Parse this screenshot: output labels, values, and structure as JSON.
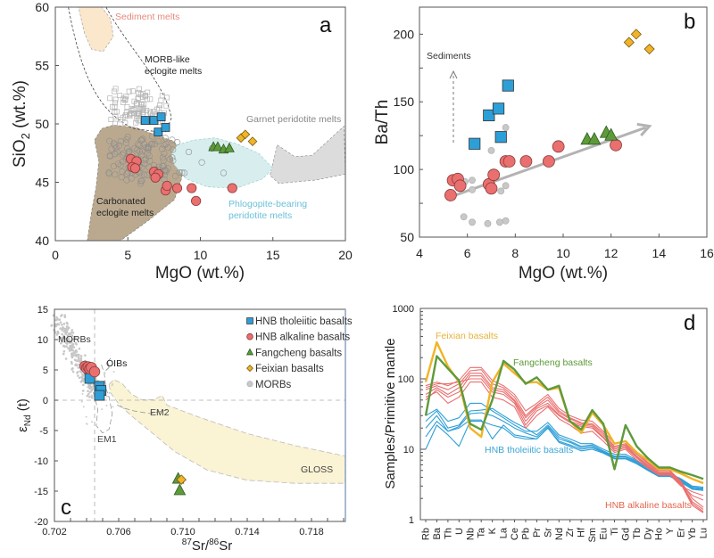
{
  "colors": {
    "hnb_tholeiitic": "#2d9fd8",
    "hnb_alkaline": "#ea6f6f",
    "fangcheng": "#5e9a3c",
    "feixian": "#f0b429",
    "morb": "#c8c8c8",
    "sediment_field": "#fbe7cc",
    "carbonated_field": "#bba98f",
    "phlogopite_field": "#d8eeee",
    "garnet_field": "#dcdcdc",
    "gloss_field": "#faf3d4",
    "alkaline_label": "#e2664e",
    "tholeiitic_label": "#3ba7d6",
    "feixian_label": "#e8b23a",
    "fangcheng_label": "#5a9a35",
    "sediment_label": "#e58a7e",
    "phlogopite_label": "#6cc0d8"
  },
  "chart_data": [
    {
      "id": "a",
      "type": "scatter",
      "panel_label": "a",
      "title": "",
      "xlabel": "MgO (wt.%)",
      "ylabel": "SiO2 (wt.%)",
      "ylabel_main": "SiO",
      "ylabel_sub": "2",
      "ylabel_tail": " (wt.%)",
      "xlim": [
        0,
        20
      ],
      "ylim": [
        40,
        60
      ],
      "xticks": [
        "0",
        "5",
        "10",
        "15",
        "20"
      ],
      "yticks": [
        "40",
        "45",
        "50",
        "55",
        "60"
      ],
      "fields": [
        {
          "name": "Sediment melts",
          "label_pos": [
            4.4,
            58.8
          ]
        },
        {
          "name": "MORB-like eclogite melts",
          "label_lines": [
            "MORB-like",
            "eclogite melts"
          ],
          "label_pos": [
            6.4,
            54.6
          ]
        },
        {
          "name": "Garnet peridotite melts",
          "label_pos": [
            13.6,
            50.4
          ]
        },
        {
          "name": "Carbonated eclogite melts",
          "label_lines": [
            "Carbonated",
            "eclogite melts"
          ],
          "label_pos": [
            3.0,
            43.6
          ]
        },
        {
          "name": "Phlogopite-bearing peridotite melts",
          "label_lines": [
            "Phlogopite-bearing",
            "peridotite melts"
          ],
          "label_pos": [
            12.0,
            43.5
          ]
        }
      ],
      "series": [
        {
          "name": "HNB tholeiitic basalts",
          "marker": "square",
          "x": [
            6.2,
            6.8,
            7.3,
            7.1,
            7.6
          ],
          "y": [
            50.3,
            50.3,
            50.6,
            49.3,
            49.7
          ]
        },
        {
          "name": "HNB alkaline basalts",
          "marker": "circle",
          "x": [
            5.2,
            5.6,
            5.3,
            5.5,
            6.8,
            7.1,
            6.9,
            7.6,
            7.7,
            8.4,
            9.4,
            9.7,
            12.2
          ],
          "y": [
            47.0,
            46.8,
            46.3,
            46.2,
            45.9,
            45.7,
            45.4,
            44.3,
            44.7,
            44.5,
            44.5,
            43.4,
            44.5
          ]
        },
        {
          "name": "Fangcheng basalts",
          "marker": "triangle",
          "x": [
            10.9,
            11.2,
            11.6,
            12.0
          ],
          "y": [
            48.0,
            48.0,
            47.8,
            47.9
          ]
        },
        {
          "name": "Feixian basalts",
          "marker": "diamond",
          "x": [
            12.8,
            13.1,
            13.6
          ],
          "y": [
            48.8,
            49.1,
            48.5
          ]
        }
      ]
    },
    {
      "id": "b",
      "type": "scatter",
      "panel_label": "b",
      "xlabel": "MgO (wt.%)",
      "ylabel": "Ba/Th",
      "xlim": [
        4,
        16
      ],
      "ylim": [
        50,
        220
      ],
      "xticks": [
        "4",
        "6",
        "8",
        "10",
        "12",
        "14",
        "16"
      ],
      "yticks": [
        "50",
        "100",
        "150",
        "200"
      ],
      "annotation": "Sediments",
      "series": [
        {
          "name": "HNB tholeiitic basalts",
          "marker": "square",
          "x": [
            6.3,
            6.9,
            7.3,
            7.7,
            7.4
          ],
          "y": [
            119,
            140,
            145,
            162,
            124
          ]
        },
        {
          "name": "HNB alkaline basalts",
          "marker": "circle",
          "x": [
            5.3,
            5.4,
            5.6,
            5.7,
            6.9,
            7.0,
            7.1,
            7.6,
            7.75,
            8.45,
            9.4,
            9.8,
            12.2
          ],
          "y": [
            81,
            92,
            93,
            88,
            89,
            86,
            96,
            106,
            106,
            106,
            106,
            117,
            118
          ]
        },
        {
          "name": "Fangcheng basalts",
          "marker": "triangle",
          "x": [
            11.0,
            11.3,
            11.8,
            12.0
          ],
          "y": [
            122,
            122,
            127,
            125
          ]
        },
        {
          "name": "Feixian basalts",
          "marker": "diamond",
          "x": [
            12.75,
            13.05,
            13.6
          ],
          "y": [
            194,
            200,
            189
          ]
        },
        {
          "name": "MORBs",
          "marker": "circle-small",
          "x": [
            5.9,
            6.2,
            6.2,
            7.0,
            7.4,
            7.6,
            7.6,
            5.85,
            6.2,
            6.85,
            7.35,
            7.6
          ],
          "y": [
            91,
            92,
            85,
            114,
            84,
            88,
            131,
            65,
            61,
            60,
            61,
            62
          ]
        }
      ],
      "trend_arrow": {
        "from": [
          5.5,
          81
        ],
        "to": [
          13.6,
          132
        ]
      }
    },
    {
      "id": "c",
      "type": "scatter",
      "panel_label": "c",
      "xlabel": "87Sr/86Sr",
      "xlabel_parts": [
        "87",
        "Sr/",
        "86",
        "Sr"
      ],
      "ylabel": "εNd (t)",
      "ylabel_parts": [
        "ε",
        "Nd",
        " (t)"
      ],
      "xlim": [
        0.702,
        0.7201
      ],
      "ylim": [
        -20,
        15
      ],
      "xticks": [
        "0.702",
        "0.706",
        "0.710",
        "0.714",
        "0.718"
      ],
      "yticks": [
        "15",
        "10",
        "5",
        "0",
        "-5",
        "-10",
        "-15",
        "-20"
      ],
      "reference_lines": {
        "x": 0.7045,
        "y": 0
      },
      "field_labels": [
        "MORBs",
        "OIBs",
        "EM1",
        "EM2",
        "GLOSS"
      ],
      "legend": {
        "position": "top-right",
        "entries": [
          {
            "name": "HNB tholeiitic basalts",
            "marker": "square"
          },
          {
            "name": "HNB alkaline basalts",
            "marker": "circle"
          },
          {
            "name": "Fangcheng basalts",
            "marker": "triangle"
          },
          {
            "name": "Feixian basalts",
            "marker": "diamond"
          },
          {
            "name": "MORBs",
            "marker": "circle-small"
          }
        ]
      },
      "series": [
        {
          "name": "HNB tholeiitic basalts",
          "marker": "square",
          "x": [
            0.7042,
            0.7048,
            0.7049,
            0.7048
          ],
          "y": [
            3.6,
            2.3,
            1.6,
            0.8
          ]
        },
        {
          "name": "HNB alkaline basalts",
          "marker": "circle",
          "x": [
            0.7039,
            0.704,
            0.7041,
            0.7042,
            0.7043,
            0.7045
          ],
          "y": [
            5.6,
            5.3,
            5.5,
            5.2,
            5.4,
            4.7
          ]
        },
        {
          "name": "Fangcheng basalts",
          "marker": "triangle",
          "x": [
            0.7097,
            0.7098
          ],
          "y": [
            -13.0,
            -14.9
          ]
        },
        {
          "name": "Feixian basalts",
          "marker": "diamond",
          "x": [
            0.7099
          ],
          "y": [
            -13.1
          ]
        }
      ]
    },
    {
      "id": "d",
      "type": "line",
      "panel_label": "d",
      "ylabel": "Samples/Primitive mantle",
      "yscale": "log",
      "ylim": [
        1,
        1000
      ],
      "yticks": [
        "1",
        "10",
        "100",
        "1000"
      ],
      "categories": [
        "Rb",
        "Ba",
        "Th",
        "U",
        "Nb",
        "Ta",
        "K",
        "La",
        "Ce",
        "Pb",
        "Pr",
        "Sr",
        "Nd",
        "Zr",
        "Hf",
        "Sm",
        "Eu",
        "Ti",
        "Gd",
        "Tb",
        "Dy",
        "Ho",
        "Y",
        "Er",
        "Yb",
        "Lu"
      ],
      "labels": {
        "feixian": "Feixian basalts",
        "fangcheng": "Fangcheng basalts",
        "tholeiitic": "HNB tholeiitic basalts",
        "alkaline": "HNB alkaline basalts"
      },
      "series": [
        {
          "name": "Feixian basalts",
          "group": "feixian",
          "values": [
            90,
            330,
            150,
            90,
            20,
            15,
            90,
            165,
            120,
            88,
            90,
            70,
            75,
            25,
            17,
            33,
            22,
            12,
            13,
            9,
            7,
            5.2,
            5.2,
            4.5,
            3.8,
            3.3
          ]
        },
        {
          "name": "Fangcheng basalts",
          "group": "fangcheng",
          "values": [
            30,
            210,
            140,
            95,
            23,
            19,
            50,
            180,
            135,
            85,
            105,
            70,
            80,
            25,
            19,
            36,
            23,
            5.2,
            22,
            11,
            7.5,
            5.5,
            5.5,
            4.8,
            4.3,
            3.8
          ]
        },
        {
          "name": "HNB alkaline basalts (1)",
          "group": "alkaline",
          "values": [
            80,
            90,
            80,
            95,
            145,
            145,
            95,
            80,
            60,
            35,
            45,
            60,
            38,
            30,
            26,
            25,
            18,
            12,
            13,
            9,
            6.5,
            5,
            5,
            3.5,
            2,
            1.5
          ]
        },
        {
          "name": "HNB alkaline basalts (2)",
          "group": "alkaline",
          "values": [
            70,
            80,
            70,
            85,
            130,
            135,
            85,
            75,
            55,
            30,
            42,
            55,
            35,
            28,
            24,
            23,
            17,
            11,
            12,
            8.5,
            6.3,
            4.8,
            4.8,
            3.4,
            1.8,
            1.4
          ]
        },
        {
          "name": "HNB alkaline basalts (3)",
          "group": "alkaline",
          "values": [
            60,
            75,
            60,
            75,
            120,
            120,
            75,
            70,
            50,
            28,
            40,
            50,
            33,
            27,
            23,
            22,
            16,
            10.5,
            11.5,
            8,
            6,
            4.6,
            4.6,
            3.3,
            1.7,
            1.3
          ]
        },
        {
          "name": "HNB alkaline basalts (4)",
          "group": "alkaline",
          "values": [
            50,
            70,
            55,
            65,
            110,
            110,
            70,
            65,
            48,
            25,
            38,
            45,
            31,
            25,
            22,
            21,
            15,
            10,
            11,
            7.8,
            5.8,
            4.5,
            4.5,
            3.2,
            1.6,
            1.25
          ]
        },
        {
          "name": "HNB alkaline basalts (5)",
          "group": "alkaline",
          "values": [
            75,
            85,
            85,
            90,
            100,
            100,
            65,
            60,
            45,
            22,
            35,
            42,
            30,
            24,
            21,
            20,
            14.5,
            9.5,
            10.5,
            7.5,
            5.6,
            4.4,
            4.4,
            3.1,
            2.2,
            1.9
          ]
        },
        {
          "name": "HNB alkaline basalts (6)",
          "group": "alkaline",
          "values": [
            55,
            65,
            45,
            55,
            90,
            90,
            55,
            50,
            40,
            20,
            30,
            40,
            27,
            22,
            17,
            18,
            13,
            9,
            10,
            7,
            5.4,
            4.3,
            4.3,
            3,
            2.5,
            2.2
          ]
        },
        {
          "name": "HNB tholeiitic basalts (1)",
          "group": "tholeiitic",
          "values": [
            30,
            37,
            25,
            28,
            45,
            45,
            35,
            28,
            22,
            18,
            18,
            24,
            16,
            14,
            12,
            12,
            10,
            8.5,
            8.5,
            7,
            5.5,
            4.5,
            4.5,
            3.8,
            3.0,
            2.9
          ]
        },
        {
          "name": "HNB tholeiitic basalts (2)",
          "group": "tholeiitic",
          "values": [
            25,
            35,
            20,
            22,
            35,
            36,
            38,
            30,
            24,
            20,
            16,
            22,
            15,
            13,
            11,
            11.5,
            9.5,
            8,
            8,
            6.8,
            5.4,
            4.4,
            4.4,
            3.7,
            2.9,
            2.8
          ]
        },
        {
          "name": "HNB tholeiitic basalts (3)",
          "group": "tholeiitic",
          "values": [
            20,
            30,
            18,
            21,
            32,
            33,
            30,
            25,
            20,
            17,
            15,
            21,
            14,
            12.5,
            10.5,
            11,
            9.2,
            7.8,
            7.8,
            6.6,
            5.2,
            4.3,
            4.3,
            3.6,
            2.8,
            2.7
          ]
        },
        {
          "name": "HNB tholeiitic basalts (4)",
          "group": "tholeiitic",
          "values": [
            15,
            25,
            18,
            20,
            26,
            26,
            14,
            22,
            16,
            15,
            14,
            20,
            13,
            11.5,
            10,
            10.5,
            9,
            7.5,
            7.5,
            6.4,
            5.1,
            4.2,
            4.2,
            3.5,
            2.8,
            2.7
          ]
        },
        {
          "name": "HNB tholeiitic basalts (5)",
          "group": "tholeiitic",
          "values": [
            10,
            22,
            16,
            11,
            25,
            25,
            22,
            20,
            15,
            14,
            14,
            20,
            12.5,
            11,
            9.5,
            10,
            8.8,
            7.3,
            7.3,
            6.2,
            5,
            4.1,
            4.1,
            3.4,
            2.7,
            2.6
          ]
        }
      ]
    }
  ]
}
